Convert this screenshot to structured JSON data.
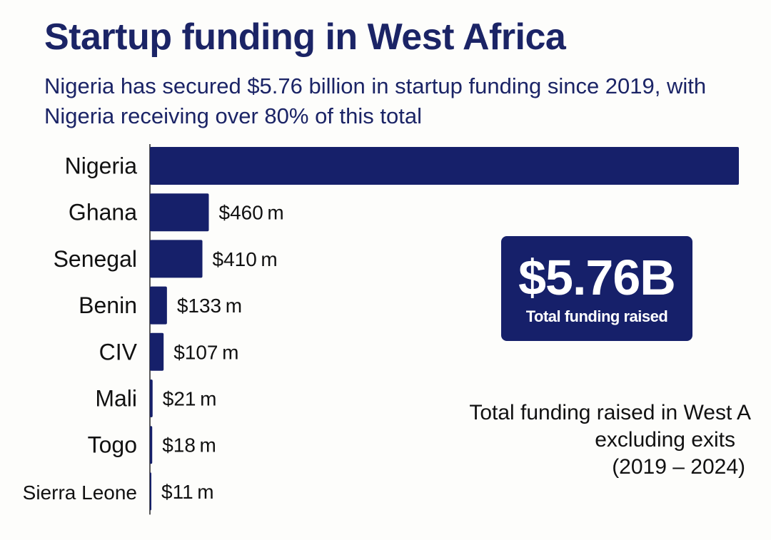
{
  "chart_data": {
    "type": "bar",
    "orientation": "horizontal",
    "title": "Startup funding in West Africa",
    "subtitle": "Nigeria has secured $5.76 billion in startup funding since 2019, with Nigeria receiving over 80% of this total",
    "categories": [
      "Nigeria",
      "Ghana",
      "Senegal",
      "Benin",
      "CIV",
      "Mali",
      "Togo",
      "Sierra Leone"
    ],
    "values": [
      4600,
      460,
      410,
      133,
      107,
      21,
      18,
      11
    ],
    "value_labels": [
      "",
      "$460 m",
      "$410 m",
      "$133 m",
      "$107 m",
      "$21 m",
      "$18 m",
      "$11 m"
    ],
    "unit": "$ m",
    "xlim": [
      0,
      4600
    ],
    "grid": false,
    "legend": "none",
    "bar_color": "#16206a"
  },
  "highlight": {
    "value": "$5.76B",
    "label": "Total funding raised"
  },
  "note": {
    "line1": "Total funding raised in West A",
    "line2": "excluding exits",
    "line3": "(2019 – 2024)"
  }
}
